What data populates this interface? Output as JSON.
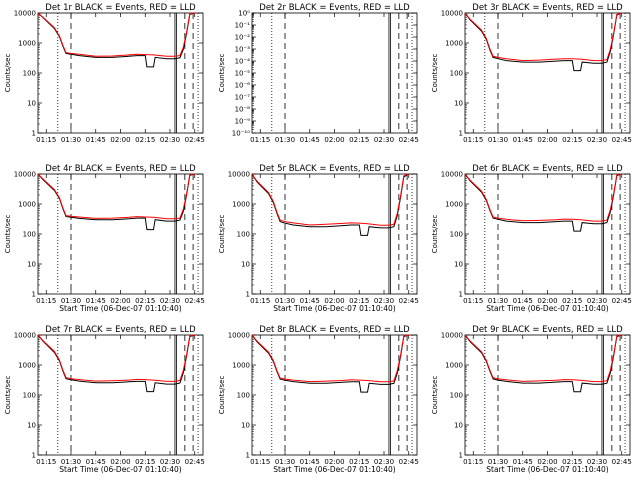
{
  "colors": {
    "events": "#000000",
    "lld": "#ff0000",
    "background": "#ffffff"
  },
  "chart_data": [
    {
      "type": "line",
      "title": "Det 1r BLACK = Events, RED = LLD",
      "ylabel": "Counts/sec",
      "xlabel": "",
      "x_ticks": [
        "01:15",
        "01:30",
        "01:45",
        "02:00",
        "02:15",
        "02:30",
        "02:45"
      ],
      "y_ticks": [
        "1",
        "10",
        "100",
        "1000",
        "10000"
      ],
      "ylim": [
        1,
        10000
      ],
      "yscale": "log",
      "series": [
        {
          "name": "Events",
          "x": [
            "01:10",
            "01:13",
            "01:20",
            "01:23",
            "01:25",
            "01:27",
            "01:30",
            "01:35",
            "01:45",
            "01:55",
            "02:05",
            "02:10",
            "02:15",
            "02:16",
            "02:20",
            "02:21",
            "02:28",
            "02:33",
            "02:36",
            "02:38",
            "02:40",
            "02:42",
            "02:45"
          ],
          "y": [
            10000,
            7000,
            3000,
            1600,
            800,
            450,
            420,
            380,
            330,
            330,
            360,
            380,
            380,
            160,
            160,
            330,
            300,
            300,
            320,
            600,
            2000,
            9000,
            10000
          ]
        },
        {
          "name": "LLD",
          "x": [
            "01:10",
            "01:13",
            "01:20",
            "01:23",
            "01:25",
            "01:27",
            "01:30",
            "01:35",
            "01:45",
            "01:55",
            "02:05",
            "02:10",
            "02:15",
            "02:20",
            "02:28",
            "02:33",
            "02:36",
            "02:38",
            "02:40",
            "02:42",
            "02:45"
          ],
          "y": [
            10000,
            7200,
            3200,
            1700,
            850,
            480,
            450,
            420,
            360,
            370,
            400,
            420,
            410,
            400,
            360,
            360,
            380,
            700,
            2200,
            9500,
            10000
          ]
        }
      ]
    },
    {
      "type": "line",
      "title": "Det 2r BLACK = Events, RED = LLD",
      "ylabel": "Counts/sec",
      "xlabel": "",
      "x_ticks": [
        "01:15",
        "01:30",
        "01:45",
        "02:00",
        "02:15",
        "02:30",
        "02:45"
      ],
      "y_ticks": [
        "10⁻¹⁰",
        "10⁻⁹",
        "10⁻⁸",
        "10⁻⁷",
        "10⁻⁶",
        "10⁻⁵",
        "10⁻⁴",
        "10⁻³",
        "10⁻²",
        "10⁻¹",
        "10⁰"
      ],
      "ylim": [
        1e-10,
        1
      ],
      "yscale": "log",
      "series": []
    },
    {
      "type": "line",
      "title": "Det 3r BLACK = Events, RED = LLD",
      "ylabel": "Counts/sec",
      "xlabel": "",
      "x_ticks": [
        "01:15",
        "01:30",
        "01:45",
        "02:00",
        "02:15",
        "02:30",
        "02:45"
      ],
      "y_ticks": [
        "1",
        "10",
        "100",
        "1000",
        "10000"
      ],
      "ylim": [
        1,
        10000
      ],
      "yscale": "log",
      "series": [
        {
          "name": "Events",
          "x": [
            "01:10",
            "01:13",
            "01:20",
            "01:23",
            "01:25",
            "01:27",
            "01:30",
            "01:35",
            "01:45",
            "01:55",
            "02:05",
            "02:10",
            "02:15",
            "02:16",
            "02:20",
            "02:21",
            "02:28",
            "02:33",
            "02:36",
            "02:38",
            "02:40",
            "02:42",
            "02:45"
          ],
          "y": [
            10000,
            6000,
            2500,
            1300,
            600,
            330,
            300,
            260,
            230,
            230,
            250,
            260,
            260,
            120,
            120,
            230,
            210,
            210,
            230,
            500,
            1800,
            8500,
            10000
          ]
        },
        {
          "name": "LLD",
          "x": [
            "01:10",
            "01:13",
            "01:20",
            "01:23",
            "01:25",
            "01:27",
            "01:30",
            "01:35",
            "01:45",
            "01:55",
            "02:05",
            "02:10",
            "02:15",
            "02:20",
            "02:28",
            "02:33",
            "02:36",
            "02:38",
            "02:40",
            "02:42",
            "02:45"
          ],
          "y": [
            10000,
            6300,
            2700,
            1400,
            650,
            360,
            330,
            300,
            260,
            270,
            290,
            300,
            300,
            290,
            260,
            260,
            280,
            600,
            2000,
            9000,
            10000
          ]
        }
      ]
    },
    {
      "type": "line",
      "title": "Det 4r BLACK = Events, RED = LLD",
      "ylabel": "Counts/sec",
      "xlabel": "Start Time (06-Dec-07 01:10:40)",
      "x_ticks": [
        "01:15",
        "01:30",
        "01:45",
        "02:00",
        "02:15",
        "02:30",
        "02:45"
      ],
      "y_ticks": [
        "1",
        "10",
        "100",
        "1000",
        "10000"
      ],
      "ylim": [
        1,
        10000
      ],
      "yscale": "log",
      "series": [
        {
          "name": "Events",
          "x": [
            "01:10",
            "01:13",
            "01:20",
            "01:23",
            "01:25",
            "01:27",
            "01:30",
            "01:35",
            "01:45",
            "01:55",
            "02:05",
            "02:10",
            "02:15",
            "02:16",
            "02:20",
            "02:21",
            "02:28",
            "02:33",
            "02:36",
            "02:38",
            "02:40",
            "02:42",
            "02:45"
          ],
          "y": [
            10000,
            6500,
            2800,
            1500,
            700,
            380,
            360,
            330,
            300,
            300,
            320,
            340,
            340,
            140,
            140,
            300,
            270,
            270,
            290,
            550,
            1900,
            9000,
            10000
          ]
        },
        {
          "name": "LLD",
          "x": [
            "01:10",
            "01:13",
            "01:20",
            "01:23",
            "01:25",
            "01:27",
            "01:30",
            "01:35",
            "01:45",
            "01:55",
            "02:05",
            "02:10",
            "02:15",
            "02:20",
            "02:28",
            "02:33",
            "02:36",
            "02:38",
            "02:40",
            "02:42",
            "02:45"
          ],
          "y": [
            10000,
            6800,
            3000,
            1600,
            750,
            410,
            390,
            370,
            330,
            340,
            360,
            380,
            370,
            360,
            320,
            320,
            340,
            650,
            2100,
            9300,
            10000
          ]
        }
      ]
    },
    {
      "type": "line",
      "title": "Det 5r BLACK = Events, RED = LLD",
      "ylabel": "Counts/sec",
      "xlabel": "Start Time (06-Dec-07 01:10:40)",
      "x_ticks": [
        "01:15",
        "01:30",
        "01:45",
        "02:00",
        "02:15",
        "02:30",
        "02:45"
      ],
      "y_ticks": [
        "1",
        "10",
        "100",
        "1000",
        "10000"
      ],
      "ylim": [
        1,
        10000
      ],
      "yscale": "log",
      "series": [
        {
          "name": "Events",
          "x": [
            "01:10",
            "01:13",
            "01:20",
            "01:23",
            "01:25",
            "01:27",
            "01:30",
            "01:35",
            "01:45",
            "01:55",
            "02:05",
            "02:10",
            "02:15",
            "02:16",
            "02:20",
            "02:21",
            "02:28",
            "02:33",
            "02:36",
            "02:38",
            "02:40",
            "02:42",
            "02:45"
          ],
          "y": [
            10000,
            5500,
            2200,
            1100,
            500,
            260,
            230,
            200,
            175,
            175,
            190,
            200,
            200,
            90,
            90,
            175,
            160,
            160,
            175,
            400,
            1600,
            8000,
            10000
          ]
        },
        {
          "name": "LLD",
          "x": [
            "01:10",
            "01:13",
            "01:20",
            "01:23",
            "01:25",
            "01:27",
            "01:30",
            "01:35",
            "01:45",
            "01:55",
            "02:05",
            "02:10",
            "02:15",
            "02:20",
            "02:28",
            "02:33",
            "02:36",
            "02:38",
            "02:40",
            "02:42",
            "02:45"
          ],
          "y": [
            10000,
            5800,
            2400,
            1200,
            550,
            290,
            260,
            235,
            200,
            210,
            225,
            235,
            230,
            220,
            195,
            195,
            210,
            480,
            1800,
            8800,
            10000
          ]
        }
      ]
    },
    {
      "type": "line",
      "title": "Det 6r BLACK = Events, RED = LLD",
      "ylabel": "Counts/sec",
      "xlabel": "Start Time (06-Dec-07 01:10:40)",
      "x_ticks": [
        "01:15",
        "01:30",
        "01:45",
        "02:00",
        "02:15",
        "02:30",
        "02:45"
      ],
      "y_ticks": [
        "1",
        "10",
        "100",
        "1000",
        "10000"
      ],
      "ylim": [
        1,
        10000
      ],
      "yscale": "log",
      "series": [
        {
          "name": "Events",
          "x": [
            "01:10",
            "01:13",
            "01:20",
            "01:23",
            "01:25",
            "01:27",
            "01:30",
            "01:35",
            "01:45",
            "01:55",
            "02:05",
            "02:10",
            "02:15",
            "02:16",
            "02:20",
            "02:21",
            "02:28",
            "02:33",
            "02:36",
            "02:38",
            "02:40",
            "02:42",
            "02:45"
          ],
          "y": [
            10000,
            6000,
            2500,
            1300,
            620,
            340,
            310,
            270,
            240,
            240,
            260,
            270,
            270,
            125,
            125,
            240,
            220,
            220,
            240,
            520,
            1850,
            8800,
            10000
          ]
        },
        {
          "name": "LLD",
          "x": [
            "01:10",
            "01:13",
            "01:20",
            "01:23",
            "01:25",
            "01:27",
            "01:30",
            "01:35",
            "01:45",
            "01:55",
            "02:05",
            "02:10",
            "02:15",
            "02:20",
            "02:28",
            "02:33",
            "02:36",
            "02:38",
            "02:40",
            "02:42",
            "02:45"
          ],
          "y": [
            10000,
            6300,
            2700,
            1400,
            670,
            370,
            340,
            310,
            275,
            285,
            300,
            315,
            310,
            300,
            270,
            270,
            290,
            620,
            2050,
            9200,
            10000
          ]
        }
      ]
    },
    {
      "type": "line",
      "title": "Det 7r BLACK = Events, RED = LLD",
      "ylabel": "Counts/sec",
      "xlabel": "Start Time (06-Dec-07 01:10:40)",
      "x_ticks": [
        "01:15",
        "01:30",
        "01:45",
        "02:00",
        "02:15",
        "02:30",
        "02:45"
      ],
      "y_ticks": [
        "1",
        "10",
        "100",
        "1000",
        "10000"
      ],
      "ylim": [
        1,
        10000
      ],
      "yscale": "log",
      "series": [
        {
          "name": "Events",
          "x": [
            "01:10",
            "01:13",
            "01:20",
            "01:23",
            "01:25",
            "01:27",
            "01:30",
            "01:35",
            "01:45",
            "01:55",
            "02:05",
            "02:10",
            "02:15",
            "02:16",
            "02:20",
            "02:21",
            "02:28",
            "02:33",
            "02:36",
            "02:38",
            "02:40",
            "02:42",
            "02:45"
          ],
          "y": [
            10000,
            6200,
            2600,
            1350,
            640,
            350,
            320,
            290,
            255,
            255,
            275,
            285,
            285,
            130,
            130,
            255,
            230,
            230,
            250,
            530,
            1900,
            8900,
            10000
          ]
        },
        {
          "name": "LLD",
          "x": [
            "01:10",
            "01:13",
            "01:20",
            "01:23",
            "01:25",
            "01:27",
            "01:30",
            "01:35",
            "01:45",
            "01:55",
            "02:05",
            "02:10",
            "02:15",
            "02:20",
            "02:28",
            "02:33",
            "02:36",
            "02:38",
            "02:40",
            "02:42",
            "02:45"
          ],
          "y": [
            10000,
            6500,
            2800,
            1450,
            690,
            380,
            350,
            325,
            290,
            300,
            315,
            330,
            325,
            315,
            285,
            285,
            305,
            640,
            2100,
            9300,
            10000
          ]
        }
      ]
    },
    {
      "type": "line",
      "title": "Det 8r BLACK = Events, RED = LLD",
      "ylabel": "Counts/sec",
      "xlabel": "Start Time (06-Dec-07 01:10:40)",
      "x_ticks": [
        "01:15",
        "01:30",
        "01:45",
        "02:00",
        "02:15",
        "02:30",
        "02:45"
      ],
      "y_ticks": [
        "1",
        "10",
        "100",
        "1000",
        "10000"
      ],
      "ylim": [
        1,
        10000
      ],
      "yscale": "log",
      "series": [
        {
          "name": "Events",
          "x": [
            "01:10",
            "01:13",
            "01:20",
            "01:23",
            "01:25",
            "01:27",
            "01:30",
            "01:35",
            "01:45",
            "01:55",
            "02:05",
            "02:10",
            "02:15",
            "02:16",
            "02:20",
            "02:21",
            "02:28",
            "02:33",
            "02:36",
            "02:38",
            "02:40",
            "02:42",
            "02:45"
          ],
          "y": [
            10000,
            6000,
            2500,
            1300,
            620,
            340,
            310,
            280,
            245,
            245,
            265,
            275,
            275,
            125,
            125,
            245,
            225,
            225,
            245,
            520,
            1850,
            8800,
            10000
          ]
        },
        {
          "name": "LLD",
          "x": [
            "01:10",
            "01:13",
            "01:20",
            "01:23",
            "01:25",
            "01:27",
            "01:30",
            "01:35",
            "01:45",
            "01:55",
            "02:05",
            "02:10",
            "02:15",
            "02:20",
            "02:28",
            "02:33",
            "02:36",
            "02:38",
            "02:40",
            "02:42",
            "02:45"
          ],
          "y": [
            10000,
            6300,
            2700,
            1400,
            670,
            370,
            340,
            315,
            280,
            290,
            305,
            320,
            315,
            305,
            275,
            275,
            295,
            630,
            2050,
            9200,
            10000
          ]
        }
      ]
    },
    {
      "type": "line",
      "title": "Det 9r BLACK = Events, RED = LLD",
      "ylabel": "Counts/sec",
      "xlabel": "Start Time (06-Dec-07 01:10:40)",
      "x_ticks": [
        "01:15",
        "01:30",
        "01:45",
        "02:00",
        "02:15",
        "02:30",
        "02:45"
      ],
      "y_ticks": [
        "1",
        "10",
        "100",
        "1000",
        "10000"
      ],
      "ylim": [
        1,
        10000
      ],
      "yscale": "log",
      "series": [
        {
          "name": "Events",
          "x": [
            "01:10",
            "01:13",
            "01:20",
            "01:23",
            "01:25",
            "01:27",
            "01:30",
            "01:35",
            "01:45",
            "01:55",
            "02:05",
            "02:10",
            "02:15",
            "02:16",
            "02:20",
            "02:21",
            "02:28",
            "02:33",
            "02:36",
            "02:38",
            "02:40",
            "02:42",
            "02:45"
          ],
          "y": [
            10000,
            6100,
            2550,
            1320,
            630,
            345,
            315,
            285,
            250,
            250,
            270,
            280,
            280,
            128,
            128,
            250,
            228,
            228,
            248,
            525,
            1870,
            8850,
            10000
          ]
        },
        {
          "name": "LLD",
          "x": [
            "01:10",
            "01:13",
            "01:20",
            "01:23",
            "01:25",
            "01:27",
            "01:30",
            "01:35",
            "01:45",
            "01:55",
            "02:05",
            "02:10",
            "02:15",
            "02:20",
            "02:28",
            "02:33",
            "02:36",
            "02:38",
            "02:40",
            "02:42",
            "02:45"
          ],
          "y": [
            10000,
            6400,
            2750,
            1420,
            680,
            375,
            345,
            320,
            285,
            295,
            310,
            325,
            320,
            310,
            280,
            280,
            300,
            635,
            2080,
            9250,
            10000
          ]
        }
      ]
    }
  ]
}
